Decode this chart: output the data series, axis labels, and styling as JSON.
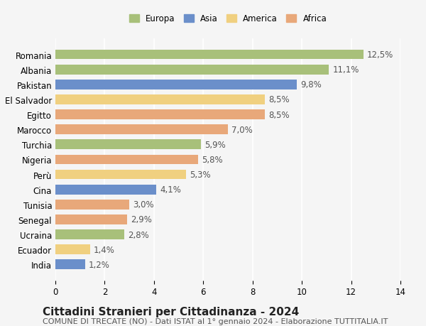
{
  "countries": [
    "Romania",
    "Albania",
    "Pakistan",
    "El Salvador",
    "Egitto",
    "Marocco",
    "Turchia",
    "Nigeria",
    "Perù",
    "Cina",
    "Tunisia",
    "Senegal",
    "Ucraina",
    "Ecuador",
    "India"
  ],
  "values": [
    12.5,
    11.1,
    9.8,
    8.5,
    8.5,
    7.0,
    5.9,
    5.8,
    5.3,
    4.1,
    3.0,
    2.9,
    2.8,
    1.4,
    1.2
  ],
  "labels": [
    "12,5%",
    "11,1%",
    "9,8%",
    "8,5%",
    "8,5%",
    "7,0%",
    "5,9%",
    "5,8%",
    "5,3%",
    "4,1%",
    "3,0%",
    "2,9%",
    "2,8%",
    "1,4%",
    "1,2%"
  ],
  "continents": [
    "Europa",
    "Europa",
    "Asia",
    "America",
    "Africa",
    "Africa",
    "Europa",
    "Africa",
    "America",
    "Asia",
    "Africa",
    "Africa",
    "Europa",
    "America",
    "Asia"
  ],
  "colors": {
    "Europa": "#a8c07a",
    "Asia": "#6b8fca",
    "America": "#f0d080",
    "Africa": "#e8a87a"
  },
  "legend_order": [
    "Europa",
    "Asia",
    "America",
    "Africa"
  ],
  "xlim": [
    0,
    14
  ],
  "xticks": [
    0,
    2,
    4,
    6,
    8,
    10,
    12,
    14
  ],
  "title": "Cittadini Stranieri per Cittadinanza - 2024",
  "subtitle": "COMUNE DI TRECATE (NO) - Dati ISTAT al 1° gennaio 2024 - Elaborazione TUTTITALIA.IT",
  "bg_color": "#f5f5f5",
  "bar_height": 0.65,
  "grid_color": "#ffffff",
  "label_fontsize": 8.5,
  "title_fontsize": 11,
  "subtitle_fontsize": 8
}
